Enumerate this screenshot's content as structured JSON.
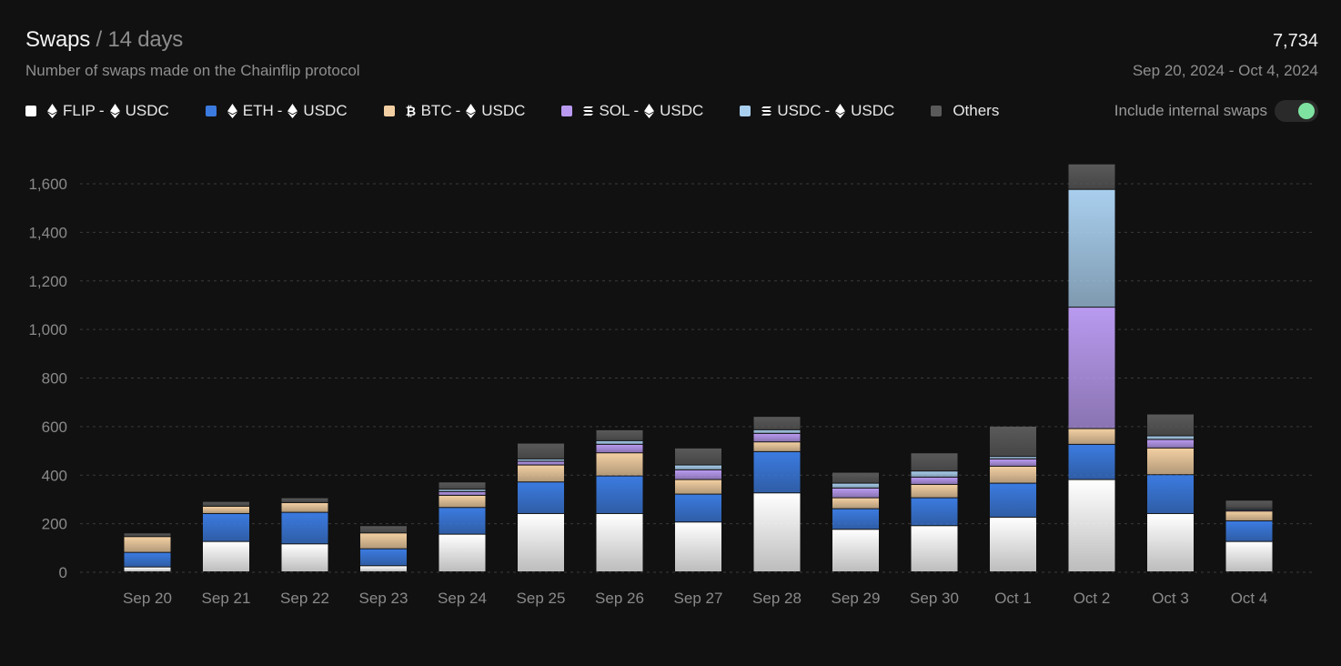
{
  "header": {
    "title": "Swaps",
    "separator": "/",
    "period": "14 days",
    "subtitle": "Number of swaps made on the Chainflip protocol",
    "total": "7,734",
    "date_range": "Sep 20, 2024 - Oct 4, 2024"
  },
  "legend": [
    {
      "from": "FLIP",
      "from_icon": "ethereum-icon",
      "to": "USDC",
      "to_icon": "ethereum-icon",
      "color": "#ffffff"
    },
    {
      "from": "ETH",
      "from_icon": "ethereum-icon",
      "to": "USDC",
      "to_icon": "ethereum-icon",
      "color": "#3b7be0"
    },
    {
      "from": "BTC",
      "from_icon": "bitcoin-icon",
      "to": "USDC",
      "to_icon": "ethereum-icon",
      "color": "#f2cfa2"
    },
    {
      "from": "SOL",
      "from_icon": "solana-icon",
      "to": "USDC",
      "to_icon": "ethereum-icon",
      "color": "#b99af0"
    },
    {
      "from": "USDC",
      "from_icon": "solana-icon",
      "to": "USDC",
      "to_icon": "ethereum-icon",
      "color": "#a9cfee"
    },
    {
      "label": "Others",
      "color": "#5a5a5a"
    }
  ],
  "legend_separator": "-",
  "toggle": {
    "label": "Include internal swaps",
    "on": true,
    "color": "#7ee3a0"
  },
  "chart_data": {
    "type": "bar",
    "stacked": true,
    "categories": [
      "Sep 20",
      "Sep 21",
      "Sep 22",
      "Sep 23",
      "Sep 24",
      "Sep 25",
      "Sep 26",
      "Sep 27",
      "Sep 28",
      "Sep 29",
      "Sep 30",
      "Oct 1",
      "Oct 2",
      "Oct 3",
      "Oct 4"
    ],
    "ylim": [
      0,
      1700
    ],
    "yticks": [
      0,
      200,
      400,
      600,
      800,
      1000,
      1200,
      1400,
      1600
    ],
    "ytick_labels": [
      "0",
      "200",
      "400",
      "600",
      "800",
      "1,000",
      "1,200",
      "1,400",
      "1,600"
    ],
    "grid": true,
    "legend_position": "top",
    "series": [
      {
        "name": "FLIP - USDC",
        "color": "#ffffff",
        "values": [
          20,
          125,
          115,
          25,
          155,
          240,
          240,
          205,
          325,
          175,
          190,
          225,
          380,
          240,
          125
        ]
      },
      {
        "name": "ETH - USDC",
        "color": "#3b7be0",
        "values": [
          60,
          115,
          130,
          70,
          110,
          130,
          155,
          115,
          170,
          85,
          115,
          140,
          145,
          160,
          85
        ]
      },
      {
        "name": "BTC - USDC",
        "color": "#f2cfa2",
        "values": [
          65,
          30,
          40,
          65,
          50,
          70,
          95,
          60,
          40,
          45,
          55,
          70,
          65,
          110,
          40
        ]
      },
      {
        "name": "SOL - USDC",
        "color": "#b99af0",
        "values": [
          0,
          0,
          0,
          0,
          15,
          15,
          35,
          40,
          35,
          40,
          30,
          30,
          500,
          35,
          5
        ]
      },
      {
        "name": "USDC - USDC",
        "color": "#a9cfee",
        "values": [
          0,
          0,
          0,
          0,
          10,
          10,
          15,
          20,
          15,
          20,
          25,
          10,
          485,
          15,
          5
        ]
      },
      {
        "name": "Others",
        "color": "#5a5a5a",
        "values": [
          15,
          20,
          20,
          30,
          30,
          65,
          45,
          70,
          55,
          45,
          75,
          125,
          105,
          90,
          35
        ]
      }
    ]
  }
}
